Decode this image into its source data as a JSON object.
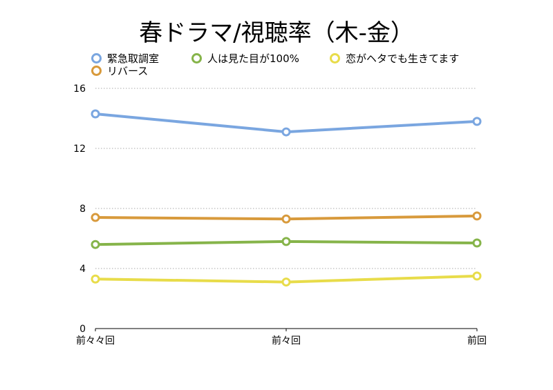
{
  "chart_data": {
    "type": "line",
    "title": "春ドラマ/視聴率（木-金）",
    "categories": [
      "前々々回",
      "前々回",
      "前回"
    ],
    "ylim": [
      0,
      16
    ],
    "yticks": [
      "0",
      "4",
      "8",
      "12",
      "16"
    ],
    "grid": true,
    "legend_position": "top",
    "series": [
      {
        "name": "緊急取調室",
        "color": "#7aa6e0",
        "values": [
          14.3,
          13.1,
          13.8
        ]
      },
      {
        "name": "人は見た目が100%",
        "color": "#86b44a",
        "values": [
          5.6,
          5.8,
          5.7
        ]
      },
      {
        "name": "恋がヘタでも生きてます",
        "color": "#e8dc4a",
        "values": [
          3.3,
          3.1,
          3.5
        ]
      },
      {
        "name": "リバース",
        "color": "#d89a3c",
        "values": [
          7.4,
          7.3,
          7.5
        ]
      }
    ]
  }
}
